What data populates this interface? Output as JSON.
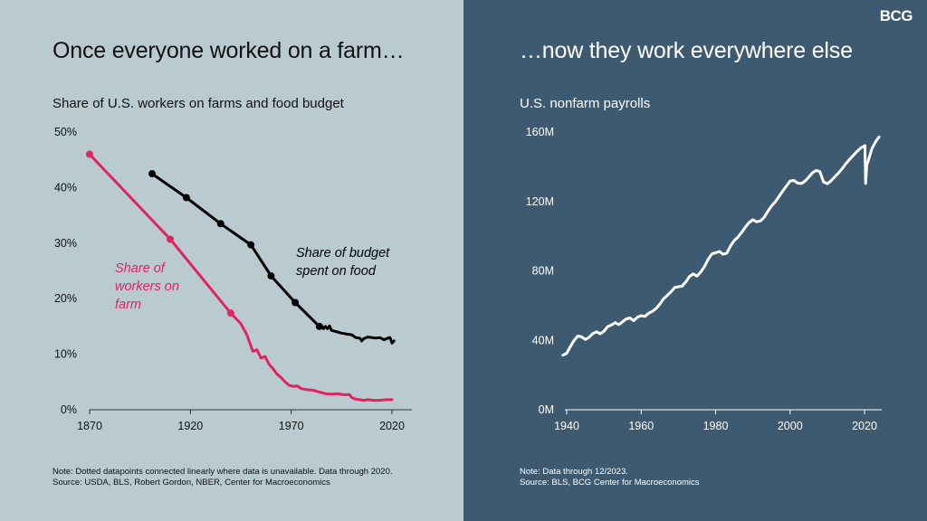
{
  "left": {
    "headline": "Once everyone worked on a farm…",
    "subtitle": "Share of U.S. workers on farms and food budget",
    "note_line1": "Note: Dotted datapoints connected linearly where data is unavailable. Data through 2020.",
    "note_line2": "Source: USDA, BLS, Robert Gordon, NBER, Center for Macroeconomics"
  },
  "right": {
    "headline": "…now they work everywhere else",
    "subtitle": "U.S. nonfarm payrolls",
    "note_line1": "Note: Data through 12/2023.",
    "note_line2": "Source: BLS, BCG Center for Macroeconomics"
  },
  "logo": "BCG",
  "colors": {
    "left_bg": "#b9cad1",
    "right_bg": "#3d5a70",
    "farm_series": "#e0245e",
    "food_series": "#000000",
    "payroll_series": "#ffffff"
  },
  "chart_data": [
    {
      "type": "line",
      "title": "Share of U.S. workers on farms and food budget",
      "xlim": [
        1870,
        2025
      ],
      "ylim": [
        0,
        50
      ],
      "x_ticks": [
        1870,
        1920,
        1970,
        2020
      ],
      "y_ticks": [
        0,
        10,
        20,
        30,
        40,
        50
      ],
      "y_tick_labels": [
        "0%",
        "10%",
        "20%",
        "30%",
        "40%",
        "50%"
      ],
      "x_tick_labels": [
        "1870",
        "1920",
        "1970",
        "2020"
      ],
      "grid": false,
      "series": [
        {
          "name": "Share of workers on farm",
          "label_lines": [
            "Share of",
            "workers on",
            "farm"
          ],
          "color": "#e0245e",
          "markers": [
            [
              1870,
              46
            ],
            [
              1910,
              30.7
            ],
            [
              1940,
              17.4
            ]
          ],
          "points": [
            [
              1870,
              46
            ],
            [
              1910,
              30.7
            ],
            [
              1940,
              17.4
            ],
            [
              1945,
              15.5
            ],
            [
              1948,
              13.5
            ],
            [
              1950,
              11.5
            ],
            [
              1951,
              10.5
            ],
            [
              1953,
              10.8
            ],
            [
              1955,
              9.3
            ],
            [
              1957,
              9.6
            ],
            [
              1959,
              8.2
            ],
            [
              1961,
              7.4
            ],
            [
              1963,
              6.4
            ],
            [
              1965,
              5.8
            ],
            [
              1967,
              5.0
            ],
            [
              1969,
              4.4
            ],
            [
              1971,
              4.2
            ],
            [
              1973,
              4.3
            ],
            [
              1975,
              3.8
            ],
            [
              1978,
              3.6
            ],
            [
              1981,
              3.5
            ],
            [
              1984,
              3.2
            ],
            [
              1987,
              2.9
            ],
            [
              1990,
              2.8
            ],
            [
              1993,
              2.9
            ],
            [
              1996,
              2.7
            ],
            [
              1999,
              2.7
            ],
            [
              2000,
              2.2
            ],
            [
              2002,
              1.9
            ],
            [
              2004,
              1.8
            ],
            [
              2006,
              1.7
            ],
            [
              2008,
              1.8
            ],
            [
              2011,
              1.7
            ],
            [
              2014,
              1.7
            ],
            [
              2017,
              1.8
            ],
            [
              2020,
              1.8
            ]
          ]
        },
        {
          "name": "Share of budget spent on food",
          "label_lines": [
            "Share of budget",
            "spent on food"
          ],
          "color": "#000000",
          "markers": [
            [
              1901,
              42.5
            ],
            [
              1918,
              38.2
            ],
            [
              1935,
              33.5
            ],
            [
              1950,
              29.7
            ],
            [
              1960,
              24.1
            ],
            [
              1972,
              19.3
            ],
            [
              1984,
              15.0
            ]
          ],
          "points": [
            [
              1901,
              42.5
            ],
            [
              1918,
              38.2
            ],
            [
              1935,
              33.5
            ],
            [
              1950,
              29.7
            ],
            [
              1960,
              24.1
            ],
            [
              1972,
              19.3
            ],
            [
              1984,
              15.0
            ],
            [
              1985,
              15.2
            ],
            [
              1986,
              14.6
            ],
            [
              1987,
              15.0
            ],
            [
              1988,
              14.6
            ],
            [
              1989,
              15.1
            ],
            [
              1990,
              14.3
            ],
            [
              1992,
              14.1
            ],
            [
              1995,
              13.8
            ],
            [
              1998,
              13.6
            ],
            [
              2000,
              13.5
            ],
            [
              2002,
              13.0
            ],
            [
              2004,
              12.9
            ],
            [
              2005,
              12.4
            ],
            [
              2006,
              12.8
            ],
            [
              2008,
              13.1
            ],
            [
              2010,
              13.0
            ],
            [
              2012,
              12.9
            ],
            [
              2014,
              13.0
            ],
            [
              2016,
              12.6
            ],
            [
              2018,
              12.9
            ],
            [
              2019,
              13.0
            ],
            [
              2020,
              12.0
            ],
            [
              2021,
              12.4
            ]
          ]
        }
      ]
    },
    {
      "type": "line",
      "title": "U.S. nonfarm payrolls",
      "xlim": [
        1938,
        2025
      ],
      "ylim": [
        0,
        160
      ],
      "x_ticks": [
        1940,
        1960,
        1980,
        2000,
        2020
      ],
      "x_tick_labels": [
        "1940",
        "1960",
        "1980",
        "2000",
        "2020"
      ],
      "y_ticks": [
        0,
        40,
        80,
        120,
        160
      ],
      "y_tick_labels": [
        "0M",
        "40M",
        "80M",
        "120M",
        "160M"
      ],
      "grid": false,
      "series": [
        {
          "name": "U.S. nonfarm payrolls",
          "color": "#ffffff",
          "points": [
            [
              1939,
              31.5
            ],
            [
              1940,
              32.5
            ],
            [
              1941,
              36.5
            ],
            [
              1942,
              40.0
            ],
            [
              1943,
              42.5
            ],
            [
              1944,
              42.0
            ],
            [
              1945,
              40.5
            ],
            [
              1946,
              41.7
            ],
            [
              1947,
              43.9
            ],
            [
              1948,
              44.9
            ],
            [
              1949,
              43.8
            ],
            [
              1950,
              45.2
            ],
            [
              1951,
              47.9
            ],
            [
              1952,
              48.8
            ],
            [
              1953,
              50.2
            ],
            [
              1954,
              49.0
            ],
            [
              1955,
              50.7
            ],
            [
              1956,
              52.4
            ],
            [
              1957,
              52.9
            ],
            [
              1958,
              51.3
            ],
            [
              1959,
              53.3
            ],
            [
              1960,
              54.2
            ],
            [
              1961,
              53.8
            ],
            [
              1962,
              55.6
            ],
            [
              1963,
              56.7
            ],
            [
              1964,
              58.3
            ],
            [
              1965,
              60.8
            ],
            [
              1966,
              63.9
            ],
            [
              1967,
              65.8
            ],
            [
              1968,
              67.9
            ],
            [
              1969,
              70.4
            ],
            [
              1970,
              70.9
            ],
            [
              1971,
              71.2
            ],
            [
              1972,
              73.7
            ],
            [
              1973,
              76.8
            ],
            [
              1974,
              78.3
            ],
            [
              1975,
              77.0
            ],
            [
              1976,
              79.4
            ],
            [
              1977,
              82.5
            ],
            [
              1978,
              86.7
            ],
            [
              1979,
              89.8
            ],
            [
              1980,
              90.4
            ],
            [
              1981,
              91.2
            ],
            [
              1982,
              89.6
            ],
            [
              1983,
              90.2
            ],
            [
              1984,
              94.4
            ],
            [
              1985,
              97.5
            ],
            [
              1986,
              99.5
            ],
            [
              1987,
              102.2
            ],
            [
              1988,
              105.2
            ],
            [
              1989,
              107.9
            ],
            [
              1990,
              109.5
            ],
            [
              1991,
              108.3
            ],
            [
              1992,
              108.7
            ],
            [
              1993,
              110.8
            ],
            [
              1994,
              114.3
            ],
            [
              1995,
              117.3
            ],
            [
              1996,
              119.7
            ],
            [
              1997,
              122.8
            ],
            [
              1998,
              125.9
            ],
            [
              1999,
              128.9
            ],
            [
              2000,
              131.8
            ],
            [
              2001,
              132.1
            ],
            [
              2002,
              130.6
            ],
            [
              2003,
              130.3
            ],
            [
              2004,
              131.7
            ],
            [
              2005,
              134.0
            ],
            [
              2006,
              136.5
            ],
            [
              2007,
              137.9
            ],
            [
              2008,
              137.2
            ],
            [
              2009,
              131.2
            ],
            [
              2010,
              130.3
            ],
            [
              2011,
              131.9
            ],
            [
              2012,
              134.2
            ],
            [
              2013,
              136.4
            ],
            [
              2014,
              138.9
            ],
            [
              2015,
              141.8
            ],
            [
              2016,
              144.3
            ],
            [
              2017,
              146.6
            ],
            [
              2018,
              148.9
            ],
            [
              2019,
              150.9
            ],
            [
              2020.1,
              152.2
            ],
            [
              2020.3,
              130.4
            ],
            [
              2020.6,
              141.0
            ],
            [
              2021,
              143.5
            ],
            [
              2022,
              150.5
            ],
            [
              2023,
              154.5
            ],
            [
              2023.9,
              157.2
            ]
          ]
        }
      ]
    }
  ]
}
